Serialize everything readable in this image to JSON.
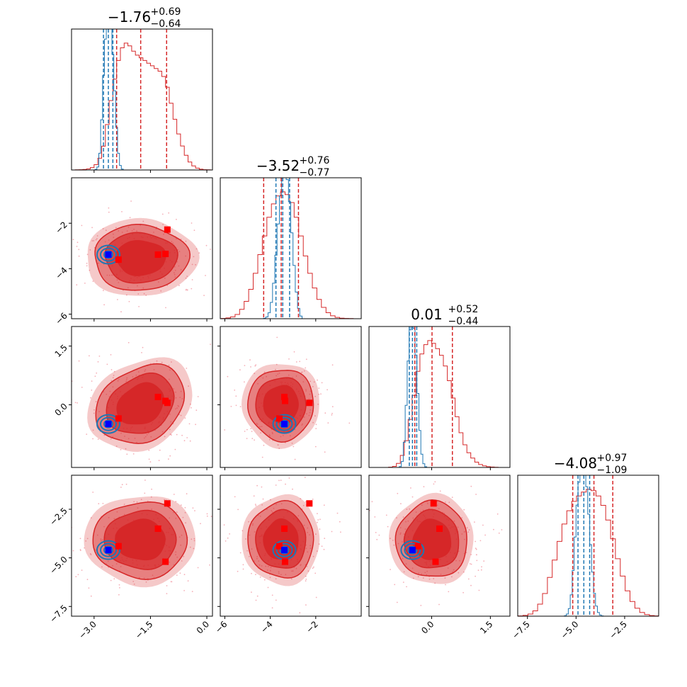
{
  "chart_data": {
    "type": "corner",
    "parameters": 4,
    "colors": {
      "posterior_a": "#d62728",
      "posterior_b": "#1f77b4",
      "marker_red": "#ff0000",
      "marker_blue": "#0000ff",
      "scatter": "#f5b0b8"
    },
    "titles": [
      {
        "median": "−1.76",
        "plus": "+0.69",
        "minus": "−0.64"
      },
      {
        "median": "−3.52",
        "plus": "+0.76",
        "minus": "−0.77"
      },
      {
        "median": "0.01",
        "plus": "+0.52",
        "minus": "−0.44"
      },
      {
        "median": "−4.08",
        "plus": "+0.97",
        "minus": "−1.09"
      }
    ],
    "ranges": [
      [
        -3.6,
        0.15
      ],
      [
        -6.2,
        0.0
      ],
      [
        -1.6,
        2.0
      ],
      [
        -8.0,
        -0.75
      ]
    ],
    "ticks": [
      {
        "values": [
          -3.0,
          -1.5,
          0.0
        ],
        "labels": [
          "−3.0",
          "−1.5",
          "0.0"
        ]
      },
      {
        "values": [
          -6,
          -4,
          -2
        ],
        "labels": [
          "−6",
          "−4",
          "−2"
        ]
      },
      {
        "values": [
          0.0,
          1.5
        ],
        "labels": [
          "0.0",
          "1.5"
        ]
      },
      {
        "values": [
          -7.5,
          -5.0,
          -2.5
        ],
        "labels": [
          "−7.5",
          "−5.0",
          "−2.5"
        ]
      }
    ],
    "row_tick_overrides": [
      null,
      null,
      {
        "values": [
          0.0,
          1.5
        ],
        "labels": [
          "0.0",
          "1.5"
        ]
      },
      {
        "values": [
          -7.5,
          -5.0,
          -2.5
        ],
        "labels": [
          "−7.5",
          "−5.0",
          "−2.5"
        ]
      }
    ],
    "quantiles_a": [
      [
        -2.4,
        -1.76,
        -1.07
      ],
      [
        -4.29,
        -3.52,
        -2.76
      ],
      [
        -0.43,
        0.01,
        0.53
      ],
      [
        -5.17,
        -4.08,
        -3.11
      ]
    ],
    "quantiles_b": [
      [
        -2.75,
        -2.62,
        -2.5
      ],
      [
        -3.75,
        -3.45,
        -3.15
      ],
      [
        -0.57,
        -0.49,
        -0.38
      ],
      [
        -4.9,
        -4.6,
        -4.3
      ]
    ],
    "marginal_a": [
      {
        "centers": [
          -3.55,
          -3.45,
          -3.35,
          -3.25,
          -3.15,
          -3.05,
          -2.95,
          -2.85,
          -2.75,
          -2.65,
          -2.55,
          -2.45,
          -2.35,
          -2.25,
          -2.15,
          -2.05,
          -1.95,
          -1.85,
          -1.75,
          -1.65,
          -1.55,
          -1.45,
          -1.35,
          -1.25,
          -1.15,
          -1.05,
          -0.95,
          -0.85,
          -0.75,
          -0.65,
          -0.55,
          -0.45,
          -0.35,
          -0.25,
          -0.15,
          -0.05,
          0.05
        ],
        "counts": [
          0,
          1,
          2,
          4,
          8,
          18,
          40,
          88,
          178,
          340,
          520,
          680,
          820,
          915,
          950,
          930,
          890,
          860,
          840,
          820,
          800,
          780,
          760,
          740,
          700,
          620,
          500,
          380,
          270,
          180,
          110,
          60,
          30,
          14,
          6,
          2,
          1
        ]
      },
      {
        "centers": [
          -6.05,
          -5.85,
          -5.65,
          -5.45,
          -5.25,
          -5.05,
          -4.85,
          -4.65,
          -4.45,
          -4.25,
          -4.05,
          -3.85,
          -3.65,
          -3.45,
          -3.25,
          -3.05,
          -2.85,
          -2.65,
          -2.45,
          -2.25,
          -2.05,
          -1.85,
          -1.65,
          -1.45,
          -1.25,
          -1.05,
          -0.85,
          -0.65,
          -0.45,
          -0.25
        ],
        "counts": [
          2,
          6,
          14,
          32,
          70,
          130,
          220,
          340,
          480,
          620,
          760,
          860,
          920,
          950,
          930,
          870,
          760,
          620,
          470,
          340,
          230,
          145,
          85,
          45,
          22,
          10,
          4,
          2,
          1,
          0
        ]
      },
      {
        "centers": [
          -1.05,
          -0.95,
          -0.85,
          -0.75,
          -0.65,
          -0.55,
          -0.45,
          -0.35,
          -0.25,
          -0.15,
          -0.05,
          0.05,
          0.15,
          0.25,
          0.35,
          0.45,
          0.55,
          0.65,
          0.75,
          0.85,
          0.95,
          1.05,
          1.15,
          1.25,
          1.35,
          1.45,
          1.55,
          1.65,
          1.75
        ],
        "counts": [
          2,
          8,
          30,
          90,
          200,
          360,
          540,
          720,
          850,
          920,
          950,
          930,
          890,
          840,
          760,
          650,
          520,
          380,
          260,
          170,
          110,
          70,
          40,
          22,
          12,
          6,
          3,
          1,
          0
        ]
      },
      {
        "centers": [
          -7.85,
          -7.6,
          -7.35,
          -7.1,
          -6.85,
          -6.6,
          -6.35,
          -6.1,
          -5.85,
          -5.6,
          -5.35,
          -5.1,
          -4.85,
          -4.6,
          -4.35,
          -4.1,
          -3.85,
          -3.6,
          -3.35,
          -3.1,
          -2.85,
          -2.6,
          -2.35,
          -2.1,
          -1.85,
          -1.6,
          -1.35,
          -1.1,
          -0.85
        ],
        "counts": [
          2,
          6,
          16,
          40,
          90,
          170,
          290,
          420,
          560,
          690,
          790,
          860,
          900,
          930,
          950,
          940,
          900,
          830,
          720,
          580,
          430,
          300,
          190,
          110,
          60,
          28,
          12,
          5,
          2
        ]
      }
    ],
    "marginal_b": [
      {
        "centers": [
          -2.95,
          -2.9,
          -2.85,
          -2.8,
          -2.75,
          -2.7,
          -2.65,
          -2.6,
          -2.55,
          -2.5,
          -2.45,
          -2.4,
          -2.35,
          -2.3,
          -2.25
        ],
        "counts": [
          4,
          20,
          110,
          330,
          620,
          860,
          980,
          1000,
          930,
          760,
          520,
          280,
          110,
          30,
          6
        ]
      },
      {
        "centers": [
          -4.25,
          -4.15,
          -4.05,
          -3.95,
          -3.85,
          -3.75,
          -3.65,
          -3.55,
          -3.45,
          -3.35,
          -3.25,
          -3.15,
          -3.05,
          -2.95,
          -2.85,
          -2.75,
          -2.65
        ],
        "counts": [
          3,
          12,
          40,
          110,
          240,
          430,
          640,
          830,
          960,
          1000,
          940,
          790,
          580,
          360,
          180,
          70,
          18
        ]
      },
      {
        "centers": [
          -0.8,
          -0.75,
          -0.7,
          -0.65,
          -0.6,
          -0.55,
          -0.5,
          -0.45,
          -0.4,
          -0.35,
          -0.3,
          -0.25,
          -0.2,
          -0.15
        ],
        "counts": [
          6,
          40,
          170,
          420,
          720,
          930,
          1000,
          940,
          760,
          500,
          250,
          90,
          25,
          5
        ]
      },
      {
        "centers": [
          -5.55,
          -5.45,
          -5.35,
          -5.25,
          -5.15,
          -5.05,
          -4.95,
          -4.85,
          -4.75,
          -4.65,
          -4.55,
          -4.45,
          -4.35,
          -4.25,
          -4.15,
          -4.05,
          -3.95,
          -3.85,
          -3.75,
          -3.65
        ],
        "counts": [
          3,
          14,
          50,
          140,
          300,
          520,
          730,
          880,
          970,
          1000,
          960,
          850,
          670,
          470,
          290,
          150,
          66,
          24,
          8,
          2
        ]
      }
    ],
    "means": [
      -1.76,
      -3.52,
      0.01,
      -4.08
    ],
    "sds": [
      0.66,
      0.76,
      0.48,
      1.03
    ],
    "red_markers": [
      [
        -1.05,
        -2.28,
        0.05,
        -2.2
      ],
      [
        -1.3,
        -3.38,
        0.2,
        -3.5
      ],
      [
        -1.1,
        -3.35,
        0.1,
        -5.2
      ],
      [
        -2.35,
        -3.6,
        -0.35,
        -4.4
      ]
    ],
    "blue_marker": [
      -2.62,
      -3.38,
      -0.49,
      -4.6
    ]
  }
}
